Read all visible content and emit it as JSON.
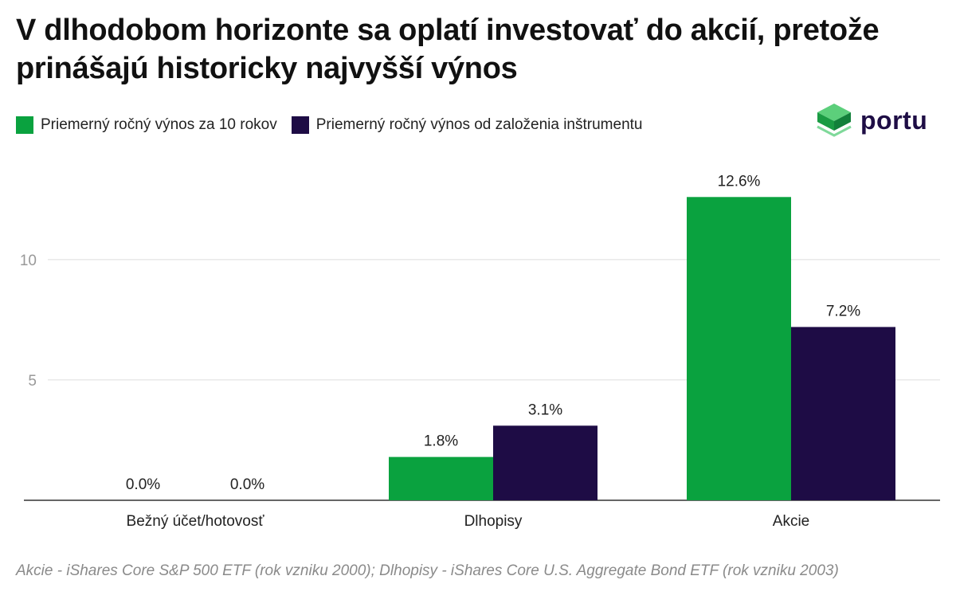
{
  "title": "V dlhodobom horizonte sa oplatí investovať do akcií, pretože prinášajú historicky najvyšší výnos",
  "brand": {
    "name": "portu",
    "icon": "portu-cube-logo-icon",
    "color": "#1e0d45",
    "accent": "#22a94c"
  },
  "colors": {
    "series1": "#0aa23f",
    "series2": "#1e0c45",
    "grid": "#dddddd",
    "axis": "#333333",
    "tick": "#999999"
  },
  "footnote": "Akcie - iShares Core S&P 500 ETF (rok vzniku 2000); Dlhopisy - iShares Core U.S. Aggregate Bond ETF (rok vzniku 2003)",
  "chart_data": {
    "type": "bar",
    "categories": [
      "Bežný účet/hotovosť",
      "Dlhopisy",
      "Akcie"
    ],
    "series": [
      {
        "name": "Priemerný ročný výnos za 10 rokov",
        "values": [
          0.0,
          1.8,
          12.6
        ],
        "labels": [
          "0.0%",
          "1.8%",
          "12.6%"
        ]
      },
      {
        "name": "Priemerný ročný výnos od založenia inštrumentu",
        "values": [
          0.0,
          3.1,
          7.2
        ],
        "labels": [
          "0.0%",
          "3.1%",
          "7.2%"
        ]
      }
    ],
    "yticks": [
      5,
      10
    ],
    "ytick_labels": [
      "5",
      "10"
    ],
    "ylim": [
      0,
      14
    ],
    "grid": true,
    "legend": "top-left"
  }
}
